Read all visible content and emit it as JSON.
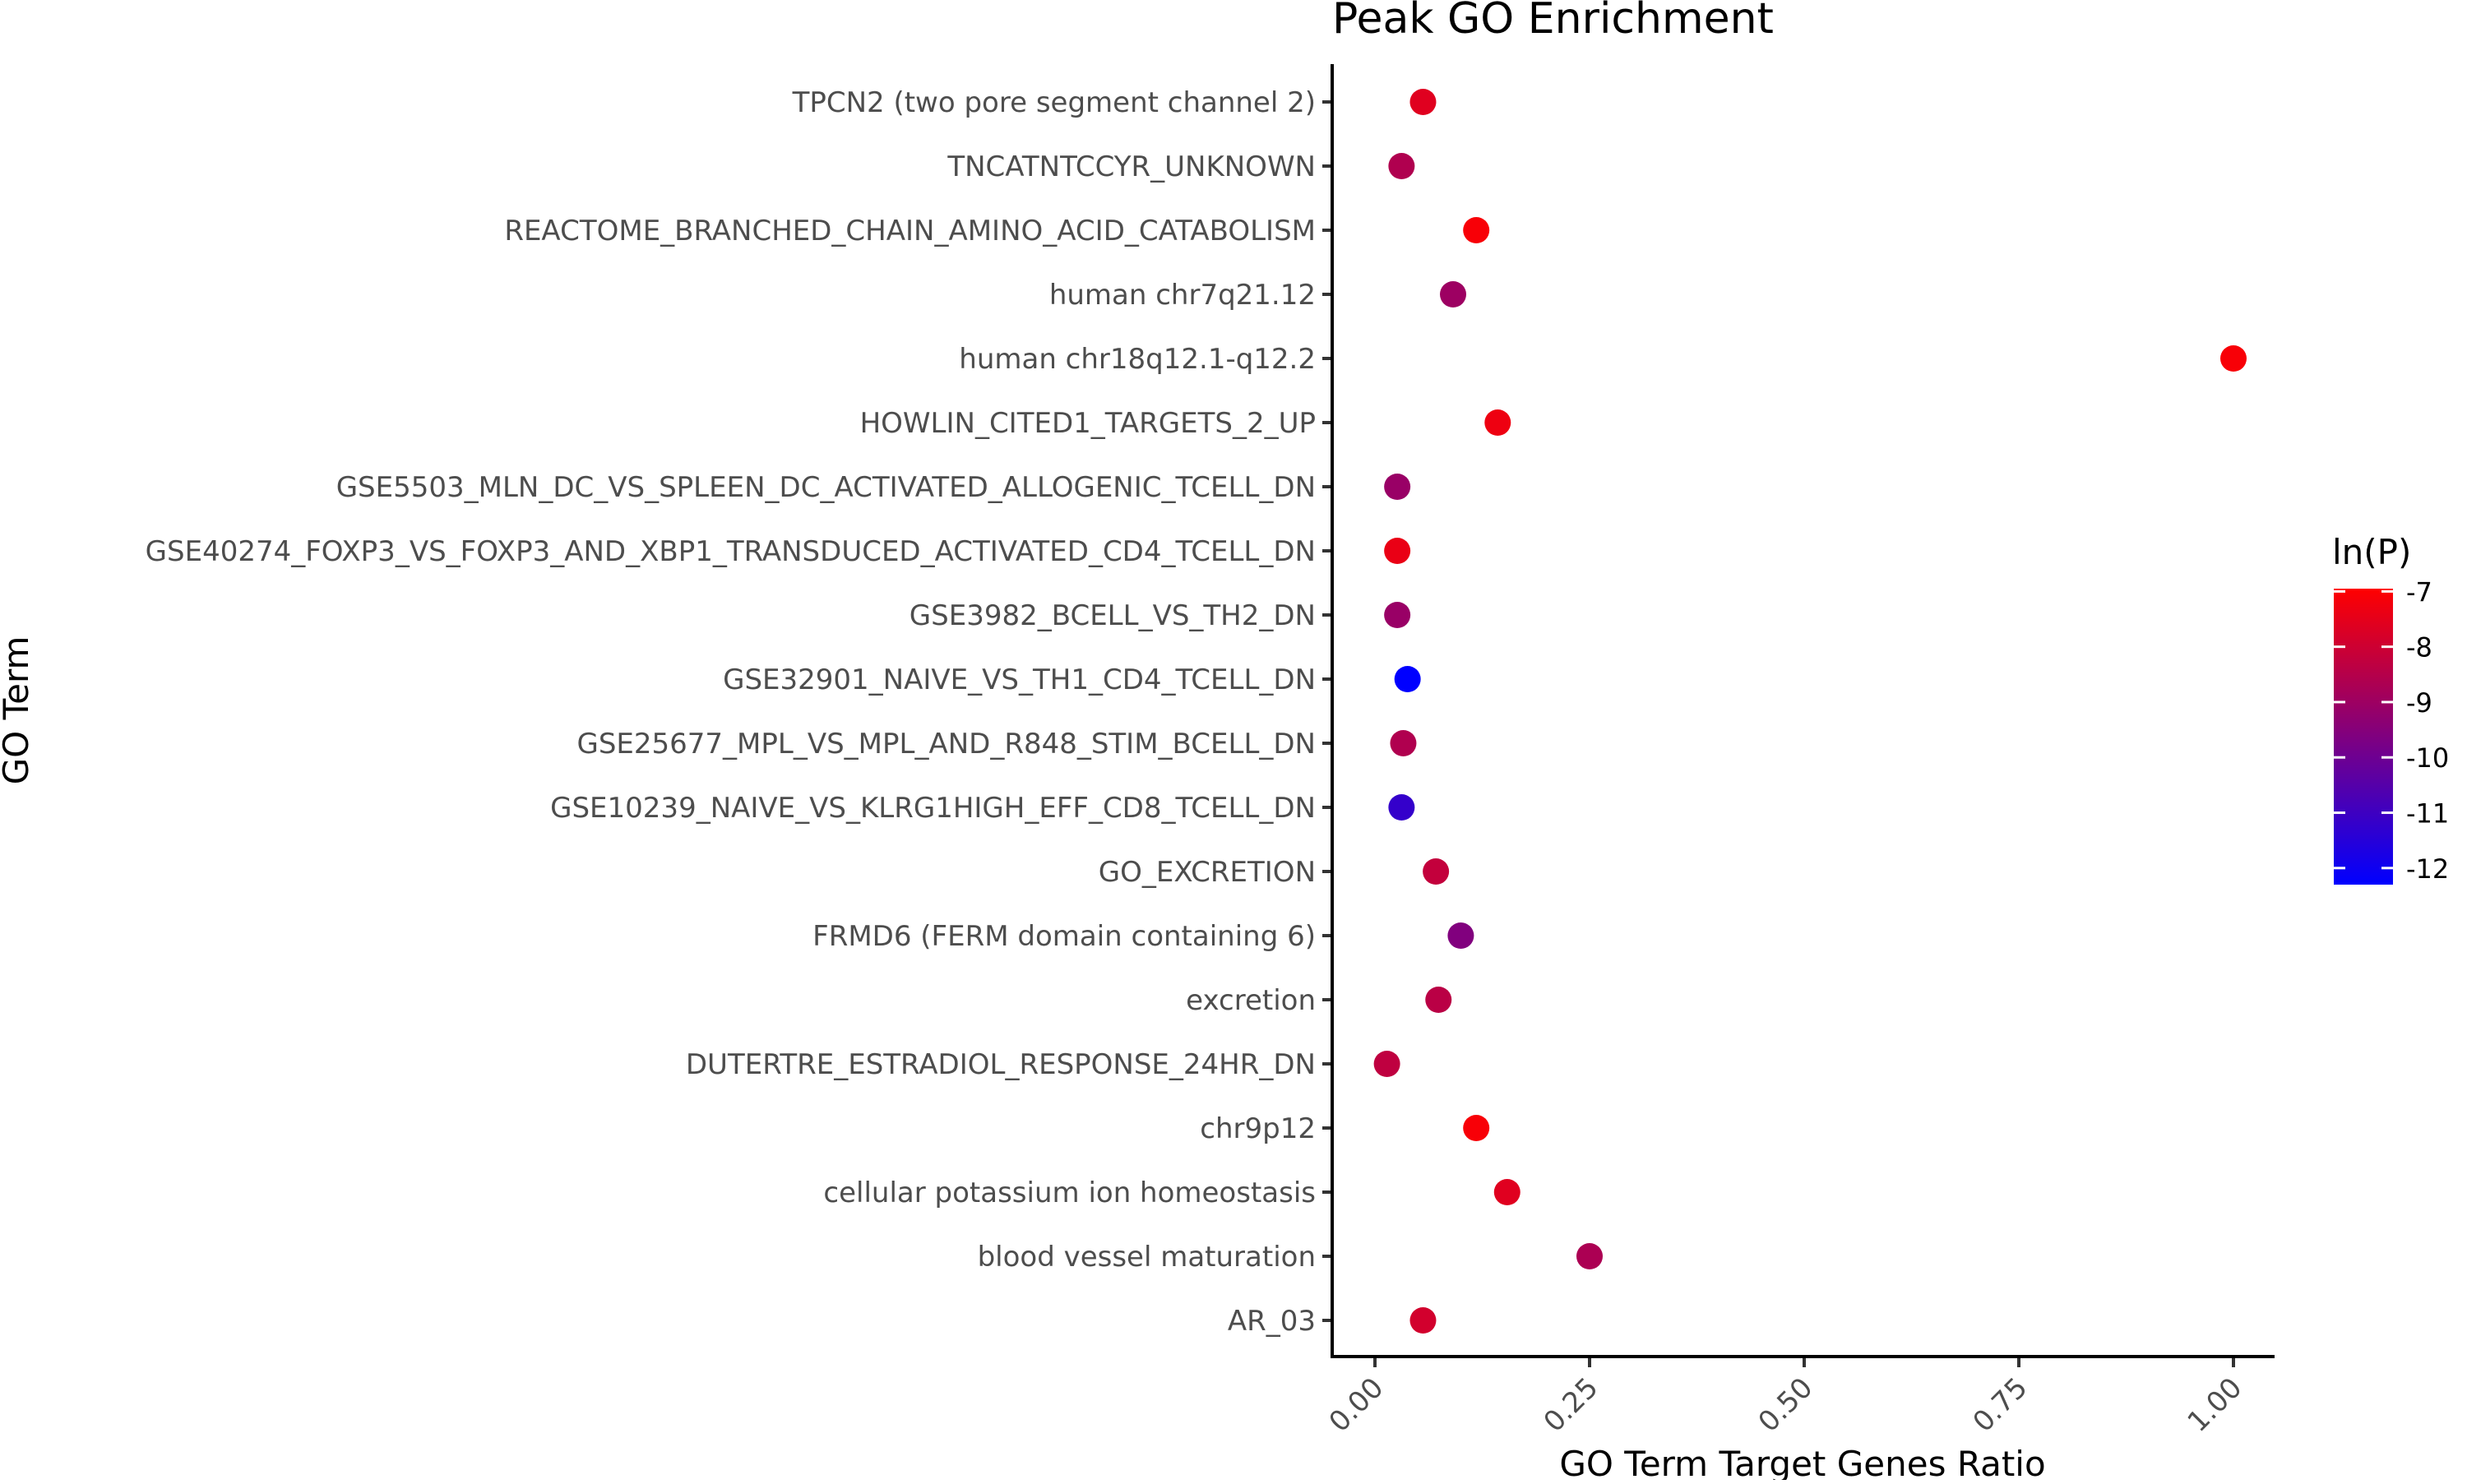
{
  "chart_data": {
    "type": "scatter",
    "title": "Peak GO Enrichment",
    "xlabel": "GO Term Target Genes Ratio",
    "ylabel": "GO Term",
    "xlim": [
      -0.05,
      1.05
    ],
    "xticks": [
      0.0,
      0.25,
      0.5,
      0.75,
      1.0
    ],
    "xtick_labels": [
      "0.00",
      "0.25",
      "0.50",
      "0.75",
      "1.00"
    ],
    "grid": false,
    "legend_position": "right",
    "color_scale": {
      "title": "ln(P)",
      "min": -12.3,
      "max": -6.95,
      "low_color": "#0000ff",
      "high_color": "#ff0000",
      "ticks": [
        -7,
        -8,
        -9,
        -10,
        -11,
        -12
      ],
      "tick_labels": [
        "-7",
        "-8",
        "-9",
        "-10",
        "-11",
        "-12"
      ]
    },
    "points": [
      {
        "term": "TPCN2 (two pore segment channel 2)",
        "x": 0.056,
        "lnP": -7.6
      },
      {
        "term": "TNCATNTCCYR_UNKNOWN",
        "x": 0.031,
        "lnP": -8.6
      },
      {
        "term": "REACTOME_BRANCHED_CHAIN_AMINO_ACID_CATABOLISM",
        "x": 0.118,
        "lnP": -7.1
      },
      {
        "term": "human chr7q21.12",
        "x": 0.091,
        "lnP": -9.0
      },
      {
        "term": "human chr18q12.1-q12.2",
        "x": 1.0,
        "lnP": -7.1
      },
      {
        "term": "HOWLIN_CITED1_TARGETS_2_UP",
        "x": 0.143,
        "lnP": -7.3
      },
      {
        "term": "GSE5503_MLN_DC_VS_SPLEEN_DC_ACTIVATED_ALLOGENIC_TCELL_DN",
        "x": 0.026,
        "lnP": -9.1
      },
      {
        "term": "GSE40274_FOXP3_VS_FOXP3_AND_XBP1_TRANSDUCED_ACTIVATED_CD4_TCELL_DN",
        "x": 0.026,
        "lnP": -7.4
      },
      {
        "term": "GSE3982_BCELL_VS_TH2_DN",
        "x": 0.026,
        "lnP": -9.1
      },
      {
        "term": "GSE32901_NAIVE_VS_TH1_CD4_TCELL_DN",
        "x": 0.038,
        "lnP": -12.3
      },
      {
        "term": "GSE25677_MPL_VS_MPL_AND_R848_STIM_BCELL_DN",
        "x": 0.033,
        "lnP": -8.6
      },
      {
        "term": "GSE10239_NAIVE_VS_KLRG1HIGH_EFF_CD8_TCELL_DN",
        "x": 0.031,
        "lnP": -11.2
      },
      {
        "term": "GO_EXCRETION",
        "x": 0.071,
        "lnP": -8.2
      },
      {
        "term": "FRMD6 (FERM domain containing 6)",
        "x": 0.1,
        "lnP": -9.6
      },
      {
        "term": "excretion",
        "x": 0.074,
        "lnP": -8.4
      },
      {
        "term": "DUTERTRE_ESTRADIOL_RESPONSE_24HR_DN",
        "x": 0.014,
        "lnP": -8.3
      },
      {
        "term": "chr9p12",
        "x": 0.118,
        "lnP": -7.1
      },
      {
        "term": "cellular potassium ion homeostasis",
        "x": 0.154,
        "lnP": -7.6
      },
      {
        "term": "blood vessel maturation",
        "x": 0.25,
        "lnP": -8.7
      },
      {
        "term": "AR_03",
        "x": 0.056,
        "lnP": -7.9
      }
    ]
  }
}
